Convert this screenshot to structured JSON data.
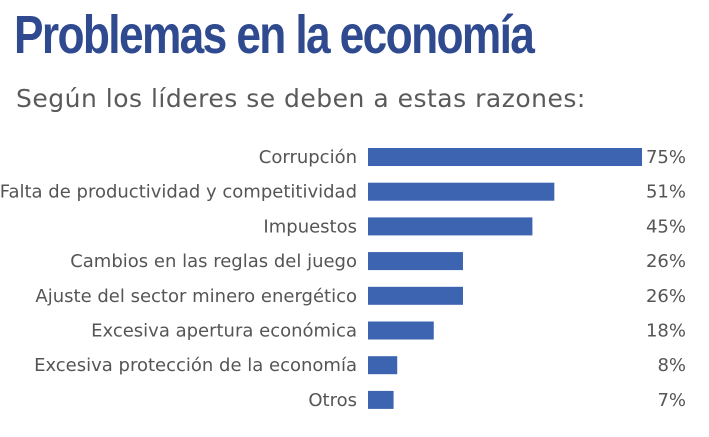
{
  "title": "Problemas en la economía",
  "subtitle": "Según los líderes se deben a estas razones:",
  "colors": {
    "title": "#2f4a8f",
    "bar": "#3d64b0",
    "text": "#555555"
  },
  "chart_data": {
    "type": "bar",
    "orientation": "horizontal",
    "title": "Problemas en la economía",
    "subtitle": "Según los líderes se deben a estas razones:",
    "categories": [
      "Corrupción",
      "Falta de productividad y competitividad",
      "Impuestos",
      "Cambios en las reglas del juego",
      "Ajuste del sector minero energético",
      "Excesiva apertura económica",
      "Excesiva protección de la economía",
      "Otros"
    ],
    "values": [
      75,
      51,
      45,
      26,
      26,
      18,
      8,
      7
    ],
    "value_labels": [
      "75%",
      "51%",
      "45%",
      "26%",
      "26%",
      "18%",
      "8%",
      "7%"
    ],
    "unit": "%",
    "xlim": [
      0,
      75
    ],
    "grid": false,
    "legend": "none"
  }
}
